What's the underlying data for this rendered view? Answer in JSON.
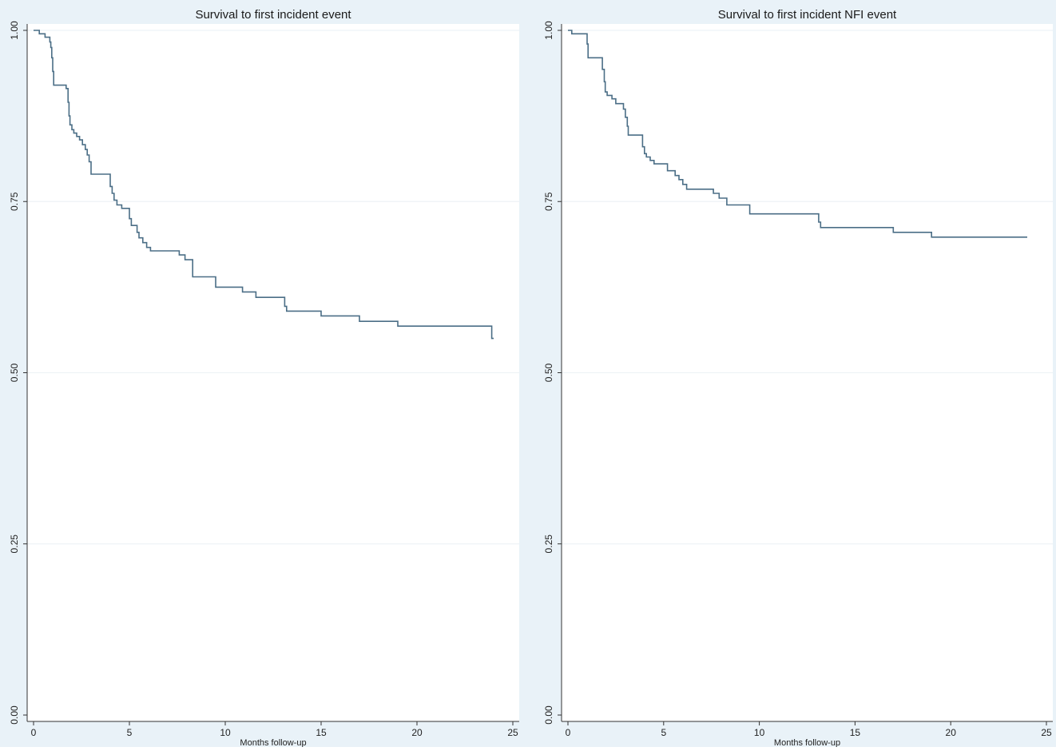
{
  "chart_data": [
    {
      "type": "line",
      "title": "Survival to first incident event",
      "xlabel": "Months follow-up",
      "ylabel": "",
      "xlim": [
        0,
        25
      ],
      "ylim": [
        0,
        1
      ],
      "x_ticks": [
        "0",
        "5",
        "10",
        "15",
        "20",
        "25"
      ],
      "y_ticks": [
        "0.00",
        "0.25",
        "0.50",
        "0.75",
        "1.00"
      ],
      "grid": true,
      "line_color": "#4b6e86",
      "step_points": [
        [
          0,
          1.0
        ],
        [
          0.3,
          0.995
        ],
        [
          0.6,
          0.99
        ],
        [
          0.85,
          0.983
        ],
        [
          0.9,
          0.975
        ],
        [
          0.95,
          0.96
        ],
        [
          1.0,
          0.94
        ],
        [
          1.05,
          0.92
        ],
        [
          1.7,
          0.915
        ],
        [
          1.8,
          0.895
        ],
        [
          1.85,
          0.875
        ],
        [
          1.9,
          0.862
        ],
        [
          2.0,
          0.855
        ],
        [
          2.1,
          0.85
        ],
        [
          2.25,
          0.845
        ],
        [
          2.4,
          0.84
        ],
        [
          2.55,
          0.833
        ],
        [
          2.7,
          0.826
        ],
        [
          2.8,
          0.818
        ],
        [
          2.9,
          0.808
        ],
        [
          3.0,
          0.79
        ],
        [
          4.0,
          0.772
        ],
        [
          4.1,
          0.762
        ],
        [
          4.2,
          0.752
        ],
        [
          4.35,
          0.745
        ],
        [
          4.6,
          0.74
        ],
        [
          5.0,
          0.725
        ],
        [
          5.1,
          0.715
        ],
        [
          5.4,
          0.705
        ],
        [
          5.5,
          0.697
        ],
        [
          5.7,
          0.69
        ],
        [
          5.9,
          0.683
        ],
        [
          6.1,
          0.678
        ],
        [
          7.6,
          0.672
        ],
        [
          7.9,
          0.665
        ],
        [
          8.3,
          0.64
        ],
        [
          9.5,
          0.625
        ],
        [
          10.9,
          0.618
        ],
        [
          11.6,
          0.61
        ],
        [
          13.1,
          0.597
        ],
        [
          13.2,
          0.59
        ],
        [
          15.0,
          0.583
        ],
        [
          17.0,
          0.575
        ],
        [
          19.0,
          0.568
        ],
        [
          23.9,
          0.55
        ],
        [
          24.0,
          0.55
        ]
      ]
    },
    {
      "type": "line",
      "title": "Survival to first incident NFI event",
      "xlabel": "Months follow-up",
      "ylabel": "",
      "xlim": [
        0,
        25
      ],
      "ylim": [
        0,
        1
      ],
      "x_ticks": [
        "0",
        "5",
        "10",
        "15",
        "20",
        "25"
      ],
      "y_ticks": [
        "0.00",
        "0.25",
        "0.50",
        "0.75",
        "1.00"
      ],
      "grid": true,
      "line_color": "#4b6e86",
      "step_points": [
        [
          0,
          1.0
        ],
        [
          0.2,
          0.995
        ],
        [
          1.0,
          0.98
        ],
        [
          1.05,
          0.96
        ],
        [
          1.8,
          0.943
        ],
        [
          1.9,
          0.925
        ],
        [
          1.95,
          0.91
        ],
        [
          2.05,
          0.905
        ],
        [
          2.3,
          0.9
        ],
        [
          2.5,
          0.893
        ],
        [
          2.9,
          0.885
        ],
        [
          3.0,
          0.873
        ],
        [
          3.1,
          0.86
        ],
        [
          3.15,
          0.847
        ],
        [
          3.9,
          0.83
        ],
        [
          4.0,
          0.82
        ],
        [
          4.1,
          0.815
        ],
        [
          4.3,
          0.81
        ],
        [
          4.5,
          0.805
        ],
        [
          5.2,
          0.795
        ],
        [
          5.6,
          0.788
        ],
        [
          5.8,
          0.782
        ],
        [
          6.0,
          0.775
        ],
        [
          6.2,
          0.768
        ],
        [
          7.6,
          0.762
        ],
        [
          7.9,
          0.755
        ],
        [
          8.3,
          0.745
        ],
        [
          9.5,
          0.732
        ],
        [
          13.1,
          0.72
        ],
        [
          13.2,
          0.712
        ],
        [
          17.0,
          0.705
        ],
        [
          19.0,
          0.698
        ],
        [
          24.0,
          0.698
        ]
      ]
    }
  ]
}
